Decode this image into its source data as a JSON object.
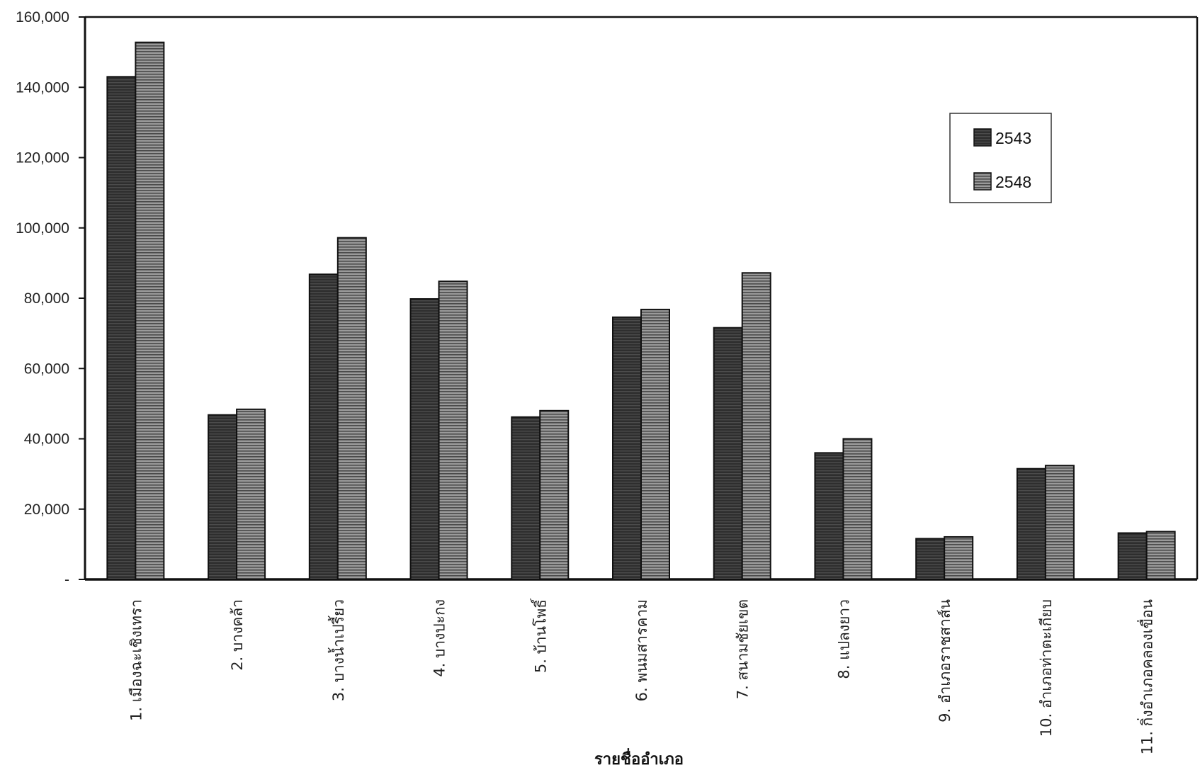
{
  "chart_data": {
    "type": "bar",
    "title": "",
    "xlabel": "รายชื่ออำเภอ",
    "ylabel": "",
    "ylim": [
      0,
      160000
    ],
    "yticks": [
      0,
      20000,
      40000,
      60000,
      80000,
      100000,
      120000,
      140000,
      160000
    ],
    "ytick_labels": [
      "-",
      "20,000",
      "40,000",
      "60,000",
      "80,000",
      "100,000",
      "120,000",
      "140,000",
      "160,000"
    ],
    "grid": false,
    "legend_position": "top-right",
    "categories": [
      "1. เมืองฉะเชิงเทรา",
      "2. บางคล้า",
      "3. บางน้ำเปรี้ยว",
      "4. บางปะกง",
      "5. บ้านโพธิ์",
      "6. พนมสารคาม",
      "7. สนามชัยเขต",
      "8. แปลงยาว",
      "9. อำเภอราชสาส์น",
      "10. อำเภอท่าตะเกียบ",
      "11. กิ่งอำเภอคลองเขื่อน"
    ],
    "series": [
      {
        "name": "2543",
        "color": "#3a3a3a",
        "values": [
          143000,
          46800,
          86800,
          79800,
          46200,
          74600,
          71600,
          36000,
          11600,
          31500,
          13200
        ]
      },
      {
        "name": "2548",
        "color": "#8a8a8a",
        "values": [
          152800,
          48400,
          97200,
          84800,
          48000,
          76800,
          87200,
          40000,
          12100,
          32400,
          13600
        ]
      }
    ]
  }
}
